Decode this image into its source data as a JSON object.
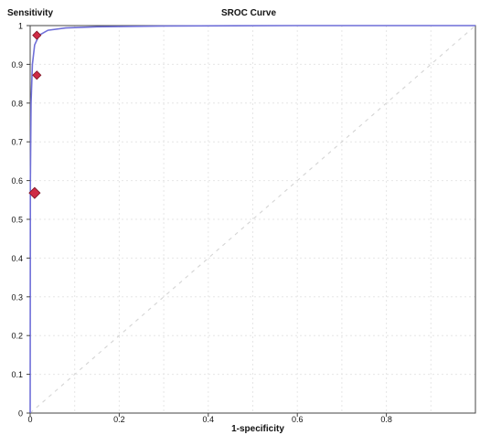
{
  "chart_data": {
    "type": "line",
    "title": "SROC Curve",
    "xlabel": "1-specificity",
    "ylabel": "Sensitivity",
    "xlim": [
      0,
      1
    ],
    "ylim": [
      0,
      1
    ],
    "x_ticks": [
      "0",
      "0.2",
      "0.4",
      "0.6",
      "0.8"
    ],
    "y_ticks": [
      "0",
      "0.1",
      "0.2",
      "0.3",
      "0.4",
      "0.5",
      "0.6",
      "0.7",
      "0.8",
      "0.9",
      "1"
    ],
    "grid": true,
    "reference_line": "dashed diagonal y = x",
    "curve_color": "#6f6fd8",
    "point_color": "#cf2b45",
    "curve": [
      {
        "x": 0,
        "y": 0
      },
      {
        "x": 0.0005,
        "y": 0.6
      },
      {
        "x": 0.002,
        "y": 0.8
      },
      {
        "x": 0.005,
        "y": 0.9
      },
      {
        "x": 0.01,
        "y": 0.95
      },
      {
        "x": 0.02,
        "y": 0.975
      },
      {
        "x": 0.04,
        "y": 0.988
      },
      {
        "x": 0.08,
        "y": 0.994
      },
      {
        "x": 0.15,
        "y": 0.997
      },
      {
        "x": 0.3,
        "y": 0.999
      },
      {
        "x": 0.6,
        "y": 1.0
      },
      {
        "x": 1.0,
        "y": 1.0
      }
    ],
    "points": [
      {
        "x": 0.015,
        "y": 0.975,
        "size": "small"
      },
      {
        "x": 0.015,
        "y": 0.872,
        "size": "small"
      },
      {
        "x": 0.01,
        "y": 0.568,
        "size": "large"
      }
    ]
  }
}
